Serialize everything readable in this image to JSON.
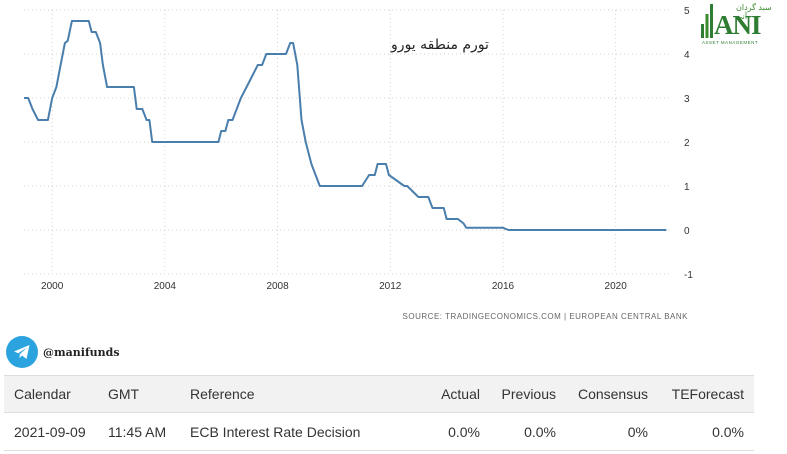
{
  "chart_data": {
    "type": "line",
    "title": "تورم منطقه یورو",
    "source": "SOURCE: TRADINGECONOMICS.COM | EUROPEAN CENTRAL BANK",
    "xlabel": "",
    "ylabel": "",
    "xlim": [
      1999,
      2022
    ],
    "ylim": [
      -1,
      5
    ],
    "x_ticks": [
      2000,
      2004,
      2008,
      2012,
      2016,
      2020
    ],
    "x_tick_labels": [
      "2000",
      "2004",
      "2008",
      "2012",
      "2016",
      "2020"
    ],
    "y_ticks": [
      5,
      4,
      3,
      2,
      1,
      0,
      -1
    ],
    "y_tick_labels": [
      "5",
      "4",
      "3",
      "2",
      "1",
      "0",
      "-1"
    ],
    "grid": true,
    "line_color": "#4a7ead",
    "series": [
      {
        "x": [
          1999.0,
          1999.15,
          1999.3,
          1999.5,
          1999.7,
          1999.85,
          2000.0,
          2000.15,
          2000.3,
          2000.45,
          2000.55,
          2000.7,
          2000.85,
          2001.0,
          2001.3,
          2001.4,
          2001.55,
          2001.7,
          2001.8,
          2001.95,
          2002.0,
          2002.5,
          2002.9,
          2003.0,
          2003.2,
          2003.35,
          2003.45,
          2003.55,
          2004.0,
          2005.0,
          2005.9,
          2006.0,
          2006.15,
          2006.25,
          2006.4,
          2006.55,
          2006.7,
          2006.9,
          2007.1,
          2007.3,
          2007.45,
          2007.6,
          2007.75,
          2008.0,
          2008.3,
          2008.45,
          2008.55,
          2008.7,
          2008.85,
          2009.0,
          2009.2,
          2009.35,
          2009.5,
          2010.0,
          2010.5,
          2011.0,
          2011.25,
          2011.45,
          2011.55,
          2011.85,
          2011.95,
          2012.5,
          2012.6,
          2013.0,
          2013.35,
          2013.5,
          2013.9,
          2014.0,
          2014.4,
          2014.6,
          2014.7,
          2015.0,
          2016.0,
          2016.2,
          2017.0,
          2018.0,
          2019.0,
          2020.0,
          2021.0,
          2021.8
        ],
        "y": [
          3.0,
          3.0,
          2.75,
          2.5,
          2.5,
          2.5,
          3.0,
          3.25,
          3.75,
          4.25,
          4.3,
          4.75,
          4.75,
          4.75,
          4.75,
          4.5,
          4.5,
          4.25,
          3.75,
          3.25,
          3.25,
          3.25,
          3.25,
          2.75,
          2.75,
          2.5,
          2.5,
          2.0,
          2.0,
          2.0,
          2.0,
          2.25,
          2.25,
          2.5,
          2.5,
          2.75,
          3.0,
          3.25,
          3.5,
          3.75,
          3.75,
          4.0,
          4.0,
          4.0,
          4.0,
          4.25,
          4.25,
          3.75,
          2.5,
          2.0,
          1.5,
          1.25,
          1.0,
          1.0,
          1.0,
          1.0,
          1.25,
          1.25,
          1.5,
          1.5,
          1.25,
          1.0,
          1.0,
          0.75,
          0.75,
          0.5,
          0.5,
          0.25,
          0.25,
          0.15,
          0.05,
          0.05,
          0.05,
          0.0,
          0.0,
          0.0,
          0.0,
          0.0,
          0.0,
          0.0
        ]
      }
    ]
  },
  "logo": {
    "top_text": "سبد گردان آنی",
    "mark": "ANI",
    "sub_text": "ASSET MANAGEMENT"
  },
  "channel": {
    "handle": "@manifunds",
    "icon": "telegram-icon"
  },
  "calendar": {
    "headers": [
      "Calendar",
      "GMT",
      "Reference",
      "Actual",
      "Previous",
      "Consensus",
      "TEForecast"
    ],
    "rows": [
      [
        "2021-09-09",
        "11:45 AM",
        "ECB Interest Rate Decision",
        "0.0%",
        "0.0%",
        "0%",
        "0.0%"
      ]
    ]
  }
}
